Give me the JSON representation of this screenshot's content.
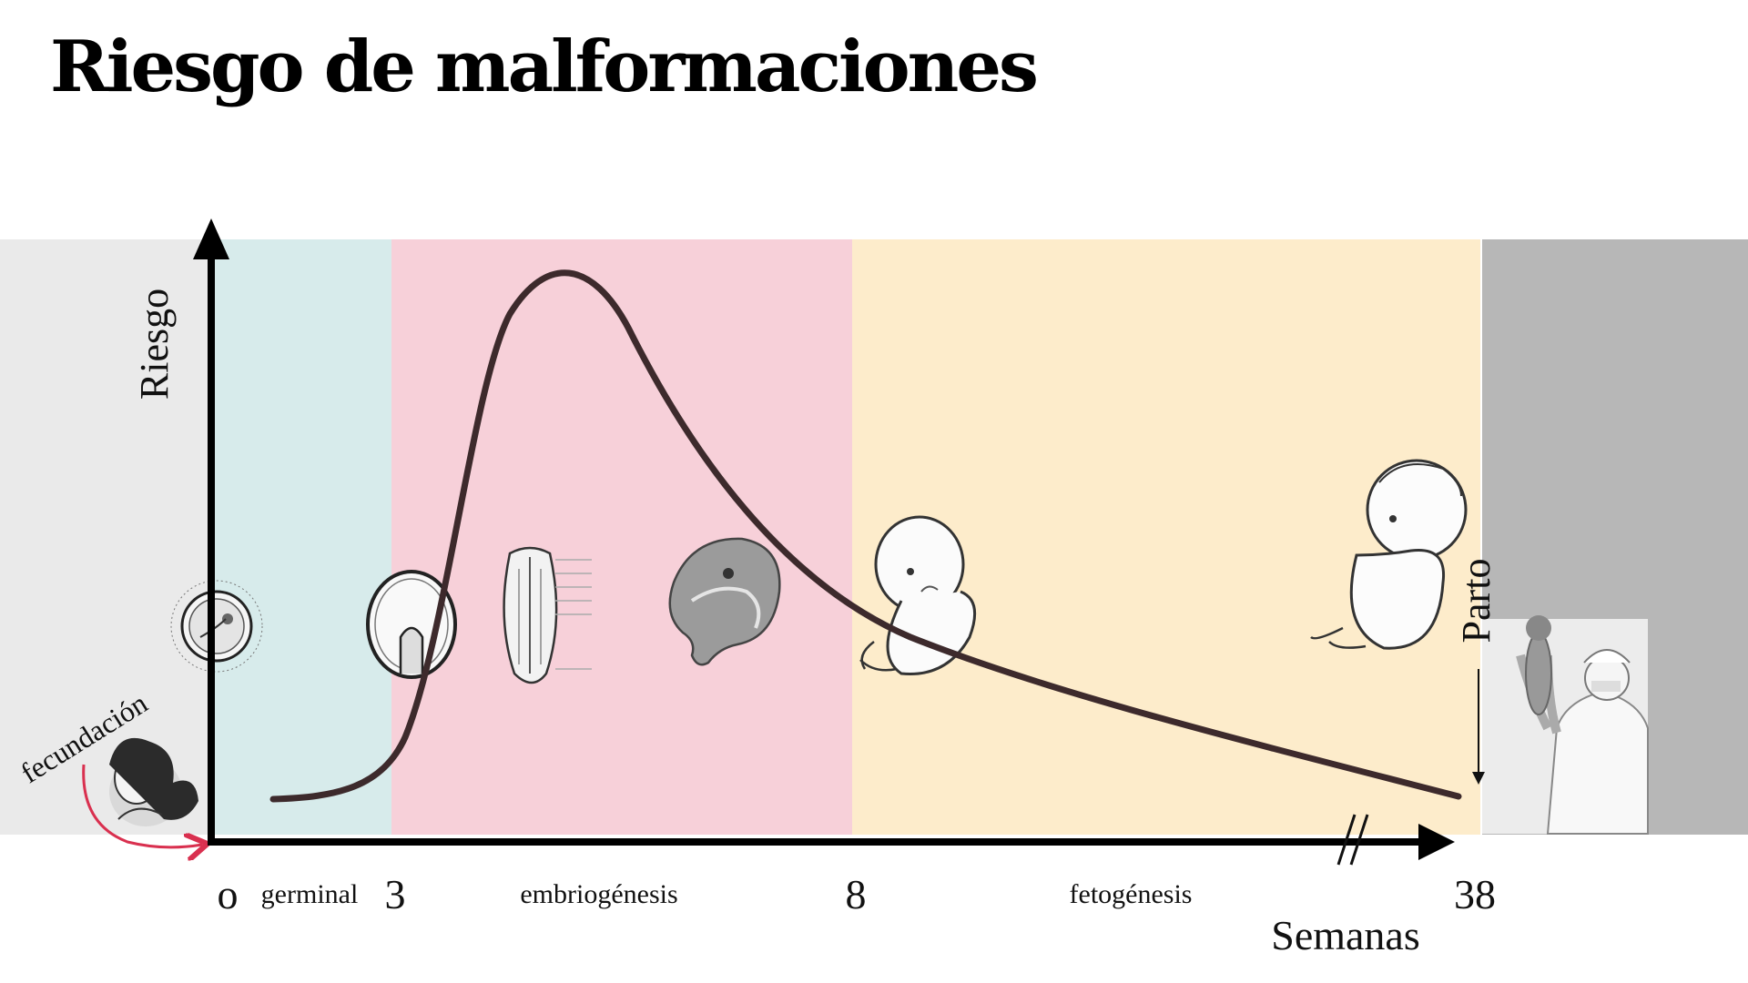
{
  "chart_data": {
    "type": "line",
    "title": "Riesgo de malformaciones",
    "xlabel": "Semanas",
    "ylabel": "Riesgo",
    "x_ticks": [
      {
        "value": 0,
        "label": "o"
      },
      {
        "value": 3,
        "label": "3"
      },
      {
        "value": 8,
        "label": "8"
      },
      {
        "value": 38,
        "label": "38"
      }
    ],
    "phases": [
      {
        "name": "germinal",
        "start": 0,
        "end": 3,
        "color": "#d7ebeb"
      },
      {
        "name": "embriogénesis",
        "start": 3,
        "end": 8,
        "color": "#f7d0d9"
      },
      {
        "name": "fetogénesis",
        "start": 8,
        "end": 38,
        "color": "#fdeccb"
      }
    ],
    "background_colors": {
      "before": "#eaeaea",
      "after": "#b7b7b7"
    },
    "curve_color": "#3d2a2c",
    "annotations": [
      {
        "text": "fecundación",
        "x": 0,
        "color": "#d9304f"
      },
      {
        "text": "Parto",
        "x": 38
      }
    ],
    "axis_break": "//",
    "curve_shape": "single peak: low in germinal phase, rises sharply after week 3, peaks within embriogénesis, declines through fetogénesis"
  },
  "icons": [
    "couple-illustration-icon",
    "ovum-icon",
    "blastocyst-icon",
    "embryo-icon",
    "embryo-week6-icon",
    "fetus-icon",
    "fetus-term-icon",
    "doctor-newborn-icon"
  ]
}
